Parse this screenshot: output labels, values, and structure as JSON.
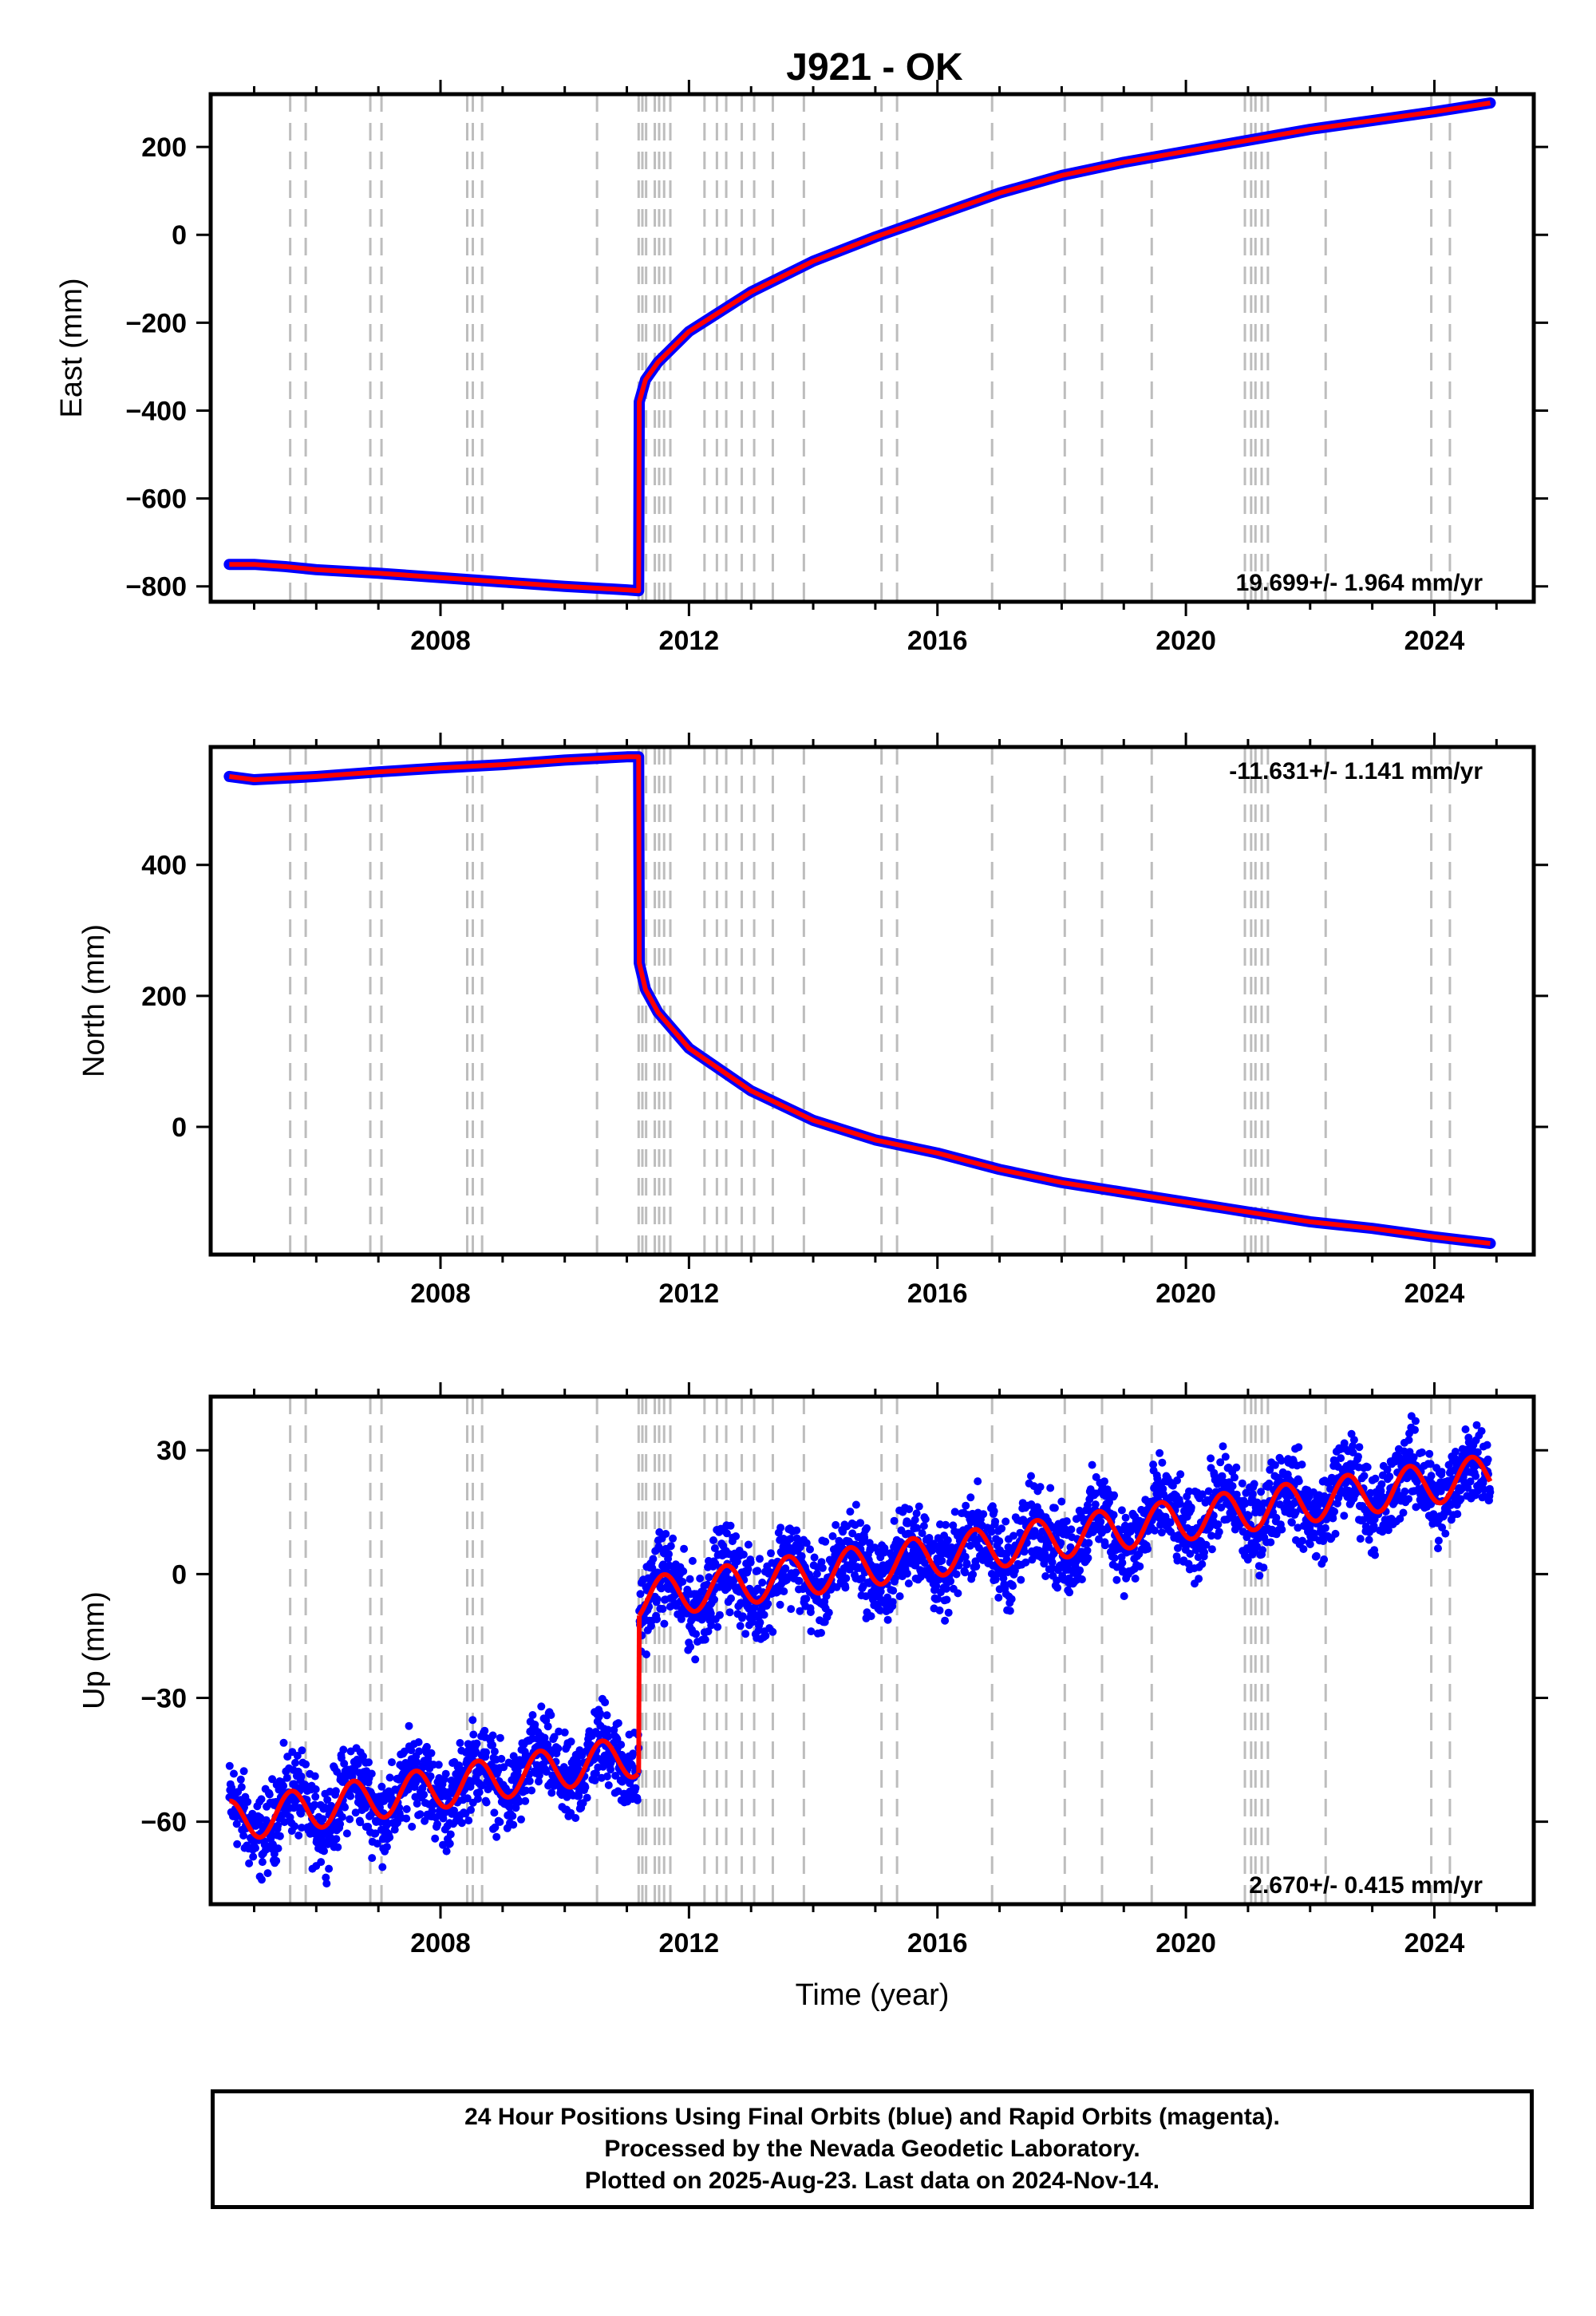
{
  "title": "J921 - OK",
  "colors": {
    "final": "#0000ff",
    "fit": "#ff0000",
    "events": "#bdbdbd"
  },
  "footer": {
    "line1": "24 Hour Positions Using Final Orbits (blue) and Rapid Orbits (magenta).",
    "line2": "Processed by the Nevada Geodetic Laboratory.",
    "line3": "Plotted on 2025-Aug-23. Last data on 2024-Nov-14."
  },
  "chart_data": [
    {
      "type": "scatter",
      "ylabel": "East (mm)",
      "xlim": [
        2004.3,
        2025.6
      ],
      "ylim": [
        -835,
        320
      ],
      "x_ticks": [
        2008,
        2012,
        2016,
        2020,
        2024
      ],
      "y_ticks": [
        200,
        0,
        -200,
        -400,
        -600,
        -800
      ],
      "y_tick_labels": [
        "200",
        "0",
        "−200",
        "−400",
        "−600",
        "−800"
      ],
      "rate_text": "19.699+/- 1.964 mm/yr",
      "rate_position": "bottom-right",
      "event_lines": [
        2005.58,
        2005.83,
        2006.87,
        2007.05,
        2008.43,
        2008.52,
        2008.67,
        2010.52,
        2011.19,
        2011.25,
        2011.31,
        2011.45,
        2011.52,
        2011.6,
        2011.7,
        2012.25,
        2012.45,
        2012.6,
        2012.85,
        2013.05,
        2013.35,
        2013.85,
        2015.1,
        2015.35,
        2016.88,
        2018.05,
        2018.65,
        2019.45,
        2020.95,
        2021.05,
        2021.12,
        2021.22,
        2021.32,
        2022.25,
        2023.95,
        2024.25
      ],
      "series": [
        {
          "values": [
            [
              2004.6,
              -750
            ],
            [
              2005.0,
              -750
            ],
            [
              2005.5,
              -755
            ],
            [
              2006.0,
              -762
            ],
            [
              2007.0,
              -770
            ],
            [
              2008.0,
              -780
            ],
            [
              2009.0,
              -790
            ],
            [
              2010.0,
              -800
            ],
            [
              2011.0,
              -808
            ],
            [
              2011.19,
              -810
            ],
            [
              2011.2,
              -380
            ],
            [
              2011.3,
              -330
            ],
            [
              2011.5,
              -290
            ],
            [
              2012.0,
              -220
            ],
            [
              2013.0,
              -130
            ],
            [
              2014.0,
              -60
            ],
            [
              2015.0,
              -5
            ],
            [
              2016.0,
              45
            ],
            [
              2017.0,
              95
            ],
            [
              2018.0,
              135
            ],
            [
              2019.0,
              165
            ],
            [
              2020.0,
              190
            ],
            [
              2021.0,
              215
            ],
            [
              2022.0,
              240
            ],
            [
              2023.0,
              260
            ],
            [
              2024.0,
              280
            ],
            [
              2024.9,
              300
            ]
          ]
        }
      ]
    },
    {
      "type": "scatter",
      "ylabel": "North (mm)",
      "xlim": [
        2004.3,
        2025.6
      ],
      "ylim": [
        -195,
        580
      ],
      "x_ticks": [
        2008,
        2012,
        2016,
        2020,
        2024
      ],
      "y_ticks": [
        400,
        200,
        0
      ],
      "y_tick_labels": [
        "400",
        "200",
        "0"
      ],
      "rate_text": "-11.631+/- 1.141 mm/yr",
      "rate_position": "top-right",
      "event_lines": [
        2005.58,
        2005.83,
        2006.87,
        2007.05,
        2008.43,
        2008.52,
        2008.67,
        2010.52,
        2011.19,
        2011.25,
        2011.31,
        2011.45,
        2011.52,
        2011.6,
        2011.7,
        2012.25,
        2012.45,
        2012.6,
        2012.85,
        2013.05,
        2013.35,
        2013.85,
        2015.1,
        2015.35,
        2016.88,
        2018.05,
        2018.65,
        2019.45,
        2020.95,
        2021.05,
        2021.12,
        2021.22,
        2021.32,
        2022.25,
        2023.95,
        2024.25
      ],
      "series": [
        {
          "values": [
            [
              2004.6,
              535
            ],
            [
              2005.0,
              530
            ],
            [
              2006.0,
              535
            ],
            [
              2007.0,
              542
            ],
            [
              2008.0,
              548
            ],
            [
              2009.0,
              553
            ],
            [
              2010.0,
              560
            ],
            [
              2011.0,
              565
            ],
            [
              2011.19,
              565
            ],
            [
              2011.2,
              250
            ],
            [
              2011.3,
              210
            ],
            [
              2011.5,
              175
            ],
            [
              2012.0,
              120
            ],
            [
              2013.0,
              55
            ],
            [
              2014.0,
              10
            ],
            [
              2015.0,
              -20
            ],
            [
              2016.0,
              -40
            ],
            [
              2017.0,
              -65
            ],
            [
              2018.0,
              -85
            ],
            [
              2019.0,
              -100
            ],
            [
              2020.0,
              -115
            ],
            [
              2021.0,
              -130
            ],
            [
              2022.0,
              -145
            ],
            [
              2023.0,
              -155
            ],
            [
              2024.0,
              -168
            ],
            [
              2024.9,
              -178
            ]
          ]
        }
      ]
    },
    {
      "type": "scatter",
      "ylabel": "Up (mm)",
      "xlabel": "Time (year)",
      "xlim": [
        2004.3,
        2025.6
      ],
      "ylim": [
        -80,
        43
      ],
      "x_ticks": [
        2008,
        2012,
        2016,
        2020,
        2024
      ],
      "y_ticks": [
        30,
        0,
        -30,
        -60
      ],
      "y_tick_labels": [
        "30",
        "0",
        "−30",
        "−60"
      ],
      "rate_text": "2.670+/- 0.415 mm/yr",
      "rate_position": "bottom-right",
      "event_lines": [
        2005.58,
        2005.83,
        2006.87,
        2007.05,
        2008.43,
        2008.52,
        2008.67,
        2010.52,
        2011.19,
        2011.25,
        2011.31,
        2011.45,
        2011.52,
        2011.6,
        2011.7,
        2012.25,
        2012.45,
        2012.6,
        2012.85,
        2013.05,
        2013.35,
        2013.85,
        2015.1,
        2015.35,
        2016.88,
        2018.05,
        2018.65,
        2019.45,
        2020.95,
        2021.05,
        2021.12,
        2021.22,
        2021.32,
        2022.25,
        2023.95,
        2024.25
      ],
      "trend": {
        "segments": [
          [
            2004.6,
            2011.19,
            -60,
            -44
          ],
          [
            2011.2,
            2024.9,
            -6,
            24
          ]
        ],
        "seasonal_amplitude": 5,
        "scatter_mm": 5
      }
    }
  ]
}
